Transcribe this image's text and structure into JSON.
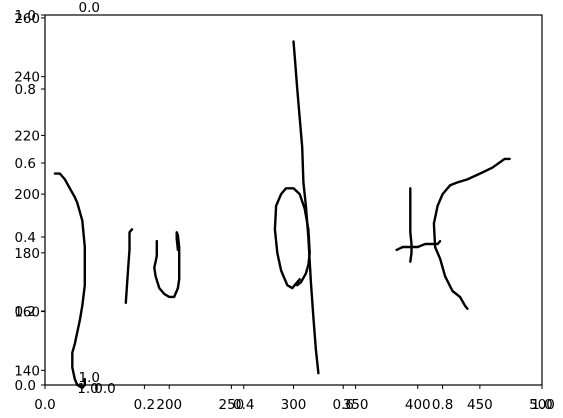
{
  "chart_data": [
    {
      "type": "line",
      "title": "",
      "xlabel": "",
      "ylabel": "",
      "xlim": [
        100,
        500
      ],
      "ylim": [
        135,
        261
      ],
      "x_ticks": [
        "200",
        "250",
        "300",
        "350",
        "400",
        "450",
        "500"
      ],
      "y_ticks": [
        "140",
        "160",
        "180",
        "200",
        "220",
        "240",
        "260"
      ],
      "grid": false,
      "series": [
        {
          "points": [
            [
              108,
              207
            ],
            [
              112,
              207
            ],
            [
              116,
              205
            ],
            [
              120,
              202
            ],
            [
              124,
              199
            ],
            [
              126,
              197
            ],
            [
              130,
              191
            ],
            [
              132,
              182
            ],
            [
              132,
              169
            ],
            [
              130,
              162
            ],
            [
              128,
              157
            ],
            [
              124,
              149
            ],
            [
              122,
              146
            ],
            [
              122,
              141
            ],
            [
              124,
              137
            ],
            [
              126,
              135
            ],
            [
              130,
              134
            ],
            [
              132,
              135
            ],
            [
              132,
              137
            ]
          ]
        },
        {
          "points": [
            [
              170,
              188
            ],
            [
              168,
              187
            ],
            [
              168,
              181
            ],
            [
              167,
              175
            ],
            [
              166,
              169
            ],
            [
              165,
              163
            ]
          ]
        },
        {
          "points": [
            [
              190,
              184
            ],
            [
              190,
              181
            ],
            [
              190,
              179
            ],
            [
              189,
              177
            ],
            [
              188,
              175
            ],
            [
              189,
              172
            ],
            [
              192,
              168
            ],
            [
              196,
              166
            ],
            [
              200,
              165
            ],
            [
              204,
              165
            ],
            [
              207,
              168
            ],
            [
              208,
              171
            ],
            [
              208,
              177
            ],
            [
              208,
              182
            ],
            [
              207,
              186
            ],
            [
              206,
              187
            ],
            [
              206,
              185
            ],
            [
              207,
              181
            ]
          ]
        },
        {
          "points": [
            [
              300,
              252
            ],
            [
              301,
              247
            ],
            [
              303,
              236
            ],
            [
              305,
              226
            ],
            [
              307,
              216
            ],
            [
              308,
              204
            ],
            [
              310,
              196
            ],
            [
              312,
              185
            ],
            [
              314,
              170
            ],
            [
              316,
              158
            ],
            [
              318,
              147
            ],
            [
              320,
              139
            ]
          ]
        },
        {
          "points": [
            [
              305,
              171
            ],
            [
              301,
              169
            ],
            [
              299,
              168
            ],
            [
              295,
              169
            ],
            [
              290,
              174
            ],
            [
              287,
              180
            ],
            [
              285,
              188
            ],
            [
              286,
              196
            ],
            [
              290,
              200
            ],
            [
              294,
              202
            ],
            [
              300,
              202
            ],
            [
              305,
              200
            ],
            [
              309,
              195
            ],
            [
              312,
              188
            ],
            [
              313,
              180
            ],
            [
              312,
              176
            ],
            [
              310,
              173
            ],
            [
              306,
              170
            ],
            [
              303,
              169
            ]
          ]
        },
        {
          "points": [
            [
              394,
              202
            ],
            [
              394,
              198
            ],
            [
              394,
              193
            ],
            [
              394,
              187
            ],
            [
              395,
              183
            ],
            [
              395,
              180
            ],
            [
              394,
              177
            ]
          ]
        },
        {
          "points": [
            [
              383,
              181
            ],
            [
              388,
              182
            ],
            [
              394,
              182
            ],
            [
              400,
              182
            ],
            [
              406,
              183
            ],
            [
              412,
              183
            ],
            [
              416,
              183
            ],
            [
              418,
              184
            ]
          ]
        },
        {
          "points": [
            [
              440,
              161
            ],
            [
              438,
              162
            ],
            [
              434,
              165
            ],
            [
              428,
              167
            ],
            [
              422,
              172
            ],
            [
              418,
              178
            ],
            [
              414,
              182
            ],
            [
              413,
              190
            ],
            [
              416,
              196
            ],
            [
              420,
              200
            ],
            [
              426,
              203
            ],
            [
              432,
              204
            ],
            [
              440,
              205
            ],
            [
              450,
              207
            ],
            [
              460,
              209
            ],
            [
              470,
              212
            ],
            [
              474,
              212
            ]
          ]
        }
      ]
    },
    {
      "type": "line",
      "title": "",
      "xlabel": "",
      "ylabel": "",
      "xlim": [
        0,
        1
      ],
      "ylim": [
        0,
        1
      ],
      "x_ticks": [
        "0.0",
        "0.2",
        "0.4",
        "0.6",
        "0.8",
        "1.0"
      ],
      "y_ticks": [
        "0.0",
        "0.2",
        "0.4",
        "0.6",
        "0.8",
        "1.0"
      ],
      "grid": false,
      "series": []
    },
    {
      "type": "line",
      "title": "",
      "xlabel": "",
      "ylabel": "",
      "xlim": [
        0,
        1
      ],
      "ylim": [
        0,
        1
      ],
      "x_ticks": [
        "0.0",
        "1.0"
      ],
      "y_ticks": [
        "0.0",
        "1.0"
      ],
      "grid": false,
      "series": []
    }
  ]
}
